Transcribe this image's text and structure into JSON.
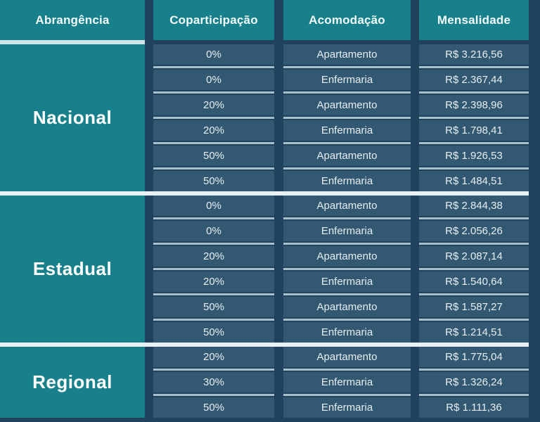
{
  "table": {
    "headers": {
      "abrangencia": "Abrangência",
      "coparticipacao": "Coparticipação",
      "acomodacao": "Acomodação",
      "mensalidade": "Mensalidade"
    },
    "sections": [
      {
        "label": "Nacional",
        "rows": [
          {
            "copay": "0%",
            "room": "Apartamento",
            "price": "R$ 3.216,56"
          },
          {
            "copay": "0%",
            "room": "Enfermaria",
            "price": "R$ 2.367,44"
          },
          {
            "copay": "20%",
            "room": "Apartamento",
            "price": "R$ 2.398,96"
          },
          {
            "copay": "20%",
            "room": "Enfermaria",
            "price": "R$ 1.798,41"
          },
          {
            "copay": "50%",
            "room": "Apartamento",
            "price": "R$ 1.926,53"
          },
          {
            "copay": "50%",
            "room": "Enfermaria",
            "price": "R$ 1.484,51"
          }
        ]
      },
      {
        "label": "Estadual",
        "rows": [
          {
            "copay": "0%",
            "room": "Apartamento",
            "price": "R$ 2.844,38"
          },
          {
            "copay": "0%",
            "room": "Enfermaria",
            "price": "R$ 2.056,26"
          },
          {
            "copay": "20%",
            "room": "Apartamento",
            "price": "R$ 2.087,14"
          },
          {
            "copay": "20%",
            "room": "Enfermaria",
            "price": "R$ 1.540,64"
          },
          {
            "copay": "50%",
            "room": "Apartamento",
            "price": "R$ 1.587,27"
          },
          {
            "copay": "50%",
            "room": "Enfermaria",
            "price": "R$ 1.214,51"
          }
        ]
      },
      {
        "label": "Regional",
        "rows": [
          {
            "copay": "20%",
            "room": "Apartamento",
            "price": "R$ 1.775,04"
          },
          {
            "copay": "30%",
            "room": "Enfermaria",
            "price": "R$ 1.326,24"
          },
          {
            "copay": "50%",
            "room": "Enfermaria",
            "price": "R$ 1.111,36"
          }
        ]
      }
    ]
  },
  "colors": {
    "teal": "#17808a",
    "navy_background": "#20425c",
    "cell_background": "#335871",
    "row_divider": "#a6c1cb",
    "section_divider": "#e7f1f3",
    "cell_text": "#e6eef3",
    "header_text": "#f2fafa"
  },
  "chart_data": {
    "type": "table",
    "title": "",
    "columns": [
      "Abrangência",
      "Coparticipação",
      "Acomodação",
      "Mensalidade"
    ],
    "rows": [
      [
        "Nacional",
        "0%",
        "Apartamento",
        "R$ 3.216,56"
      ],
      [
        "Nacional",
        "0%",
        "Enfermaria",
        "R$ 2.367,44"
      ],
      [
        "Nacional",
        "20%",
        "Apartamento",
        "R$ 2.398,96"
      ],
      [
        "Nacional",
        "20%",
        "Enfermaria",
        "R$ 1.798,41"
      ],
      [
        "Nacional",
        "50%",
        "Apartamento",
        "R$ 1.926,53"
      ],
      [
        "Nacional",
        "50%",
        "Enfermaria",
        "R$ 1.484,51"
      ],
      [
        "Estadual",
        "0%",
        "Apartamento",
        "R$ 2.844,38"
      ],
      [
        "Estadual",
        "0%",
        "Enfermaria",
        "R$ 2.056,26"
      ],
      [
        "Estadual",
        "20%",
        "Apartamento",
        "R$ 2.087,14"
      ],
      [
        "Estadual",
        "20%",
        "Enfermaria",
        "R$ 1.540,64"
      ],
      [
        "Estadual",
        "50%",
        "Apartamento",
        "R$ 1.587,27"
      ],
      [
        "Estadual",
        "50%",
        "Enfermaria",
        "R$ 1.214,51"
      ],
      [
        "Regional",
        "20%",
        "Apartamento",
        "R$ 1.775,04"
      ],
      [
        "Regional",
        "30%",
        "Enfermaria",
        "R$ 1.326,24"
      ],
      [
        "Regional",
        "50%",
        "Enfermaria",
        "R$ 1.111,36"
      ]
    ]
  }
}
